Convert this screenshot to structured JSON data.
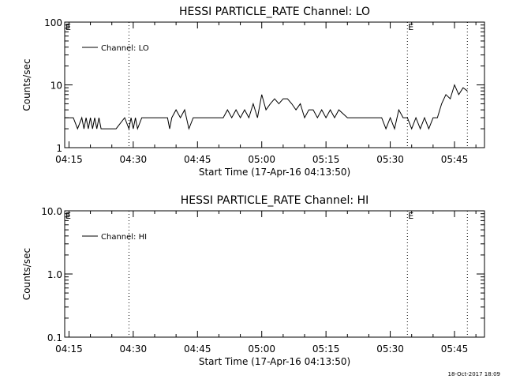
{
  "footer_timestamp": "18-Oct-2017 18:09",
  "colors": {
    "line": "#000000",
    "background": "#ffffff"
  },
  "chart_data": [
    {
      "type": "line",
      "title": "HESSI PARTICLE_RATE Channel: LO",
      "xlabel": "Start Time (17-Apr-16 04:13:50)",
      "ylabel": "Counts/sec",
      "y_scale": "log",
      "ylim": [
        1,
        100
      ],
      "y_ticks": [
        1,
        10,
        100
      ],
      "y_tick_labels": [
        "1",
        "10",
        "100"
      ],
      "x_range": [
        "04:14",
        "05:52"
      ],
      "x_ticks": [
        "04:15",
        "04:30",
        "04:45",
        "05:00",
        "05:15",
        "05:30",
        "05:45"
      ],
      "legend": {
        "position": "top-left",
        "label": "Channel: LO"
      },
      "event_markers": [
        {
          "time": "04:29",
          "label": ""
        },
        {
          "time": "05:34",
          "label": "E"
        },
        {
          "time": "05:48",
          "label": ""
        }
      ],
      "corner_label": "E",
      "series": [
        {
          "name": "Channel: LO",
          "x": [
            "04:14",
            "04:16",
            "04:17",
            "04:18",
            "04:18.5",
            "04:19",
            "04:19.5",
            "04:20",
            "04:20.5",
            "04:21",
            "04:21.5",
            "04:22",
            "04:22.5",
            "04:23",
            "04:24",
            "04:25",
            "04:26",
            "04:28",
            "04:29",
            "04:29.5",
            "04:30",
            "04:30.5",
            "04:31",
            "04:32",
            "04:35",
            "04:38",
            "04:38.5",
            "04:39",
            "04:40",
            "04:41",
            "04:42",
            "04:43",
            "04:44",
            "04:45",
            "04:46",
            "04:47",
            "04:48",
            "04:49",
            "04:50",
            "04:51",
            "04:52",
            "04:53",
            "04:54",
            "04:55",
            "04:56",
            "04:57",
            "04:58",
            "04:59",
            "05:00",
            "05:01",
            "05:02",
            "05:03",
            "05:04",
            "05:05",
            "05:06",
            "05:07",
            "05:08",
            "05:09",
            "05:10",
            "05:11",
            "05:12",
            "05:13",
            "05:14",
            "05:15",
            "05:16",
            "05:17",
            "05:18",
            "05:20",
            "05:22",
            "05:23",
            "05:24",
            "05:25",
            "05:27",
            "05:28",
            "05:29",
            "05:30",
            "05:31",
            "05:32",
            "05:33",
            "05:34",
            "05:35",
            "05:36",
            "05:37",
            "05:38",
            "05:39",
            "05:40",
            "05:41",
            "05:42",
            "05:43",
            "05:44",
            "05:45",
            "05:46",
            "05:47",
            "05:48"
          ],
          "y": [
            3,
            3,
            2,
            3,
            2,
            3,
            2,
            3,
            2,
            3,
            2,
            3,
            2,
            2,
            2,
            2,
            2,
            3,
            2,
            3,
            2,
            3,
            2,
            3,
            3,
            3,
            2,
            3,
            4,
            3,
            4,
            2,
            3,
            3,
            3,
            3,
            3,
            3,
            3,
            3,
            4,
            3,
            4,
            3,
            4,
            3,
            5,
            3,
            7,
            4,
            5,
            6,
            5,
            6,
            6,
            5,
            4,
            5,
            3,
            4,
            4,
            3,
            4,
            3,
            4,
            3,
            4,
            3,
            3,
            3,
            3,
            3,
            3,
            3,
            2,
            3,
            2,
            4,
            3,
            3,
            2,
            3,
            2,
            3,
            2,
            3,
            3,
            5,
            7,
            6,
            10,
            7,
            9,
            8
          ]
        }
      ]
    },
    {
      "type": "line",
      "title": "HESSI PARTICLE_RATE Channel: HI",
      "xlabel": "Start Time (17-Apr-16 04:13:50)",
      "ylabel": "Counts/sec",
      "y_scale": "log",
      "ylim": [
        0.1,
        10
      ],
      "y_ticks": [
        0.1,
        1,
        10
      ],
      "y_tick_labels": [
        "0.1",
        "1.0",
        "10.0"
      ],
      "x_range": [
        "04:14",
        "05:52"
      ],
      "x_ticks": [
        "04:15",
        "04:30",
        "04:45",
        "05:00",
        "05:15",
        "05:30",
        "05:45"
      ],
      "legend": {
        "position": "top-left",
        "label": "Channel: HI"
      },
      "event_markers": [
        {
          "time": "04:29",
          "label": ""
        },
        {
          "time": "05:34",
          "label": "E"
        },
        {
          "time": "05:48",
          "label": ""
        }
      ],
      "corner_label": "E",
      "series": [
        {
          "name": "Channel: HI",
          "x": [],
          "y": []
        }
      ]
    }
  ]
}
